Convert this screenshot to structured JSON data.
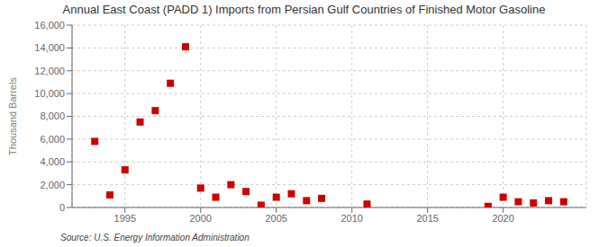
{
  "chart_data": {
    "type": "scatter",
    "title": "Annual East Coast (PADD 1) Imports from Persian Gulf Countries of Finished Motor Gasoline",
    "y_label": "Thousand Barrels",
    "annotations": [
      "Source: U.S. Energy Information Administration"
    ],
    "x": [
      1993,
      1994,
      1995,
      1996,
      1997,
      1998,
      1999,
      2000,
      2001,
      2002,
      2003,
      2004,
      2005,
      2006,
      2007,
      2008,
      2011,
      2019,
      2020,
      2021,
      2022,
      2023,
      2024
    ],
    "values": [
      5800,
      1100,
      3300,
      7500,
      8500,
      10900,
      14100,
      1700,
      900,
      2000,
      1400,
      200,
      900,
      1200,
      600,
      800,
      300,
      100,
      900,
      500,
      400,
      600,
      500
    ],
    "color": "#cc0000",
    "marker": "square",
    "xlim": [
      1991.5,
      2025.5
    ],
    "xticks": [
      1995,
      2000,
      2005,
      2010,
      2015,
      2020
    ],
    "ylim": [
      0,
      16000
    ],
    "yticks": [
      0,
      {
        "value": 2000,
        "label": "2,000"
      },
      {
        "value": 4000,
        "label": "4,000"
      },
      {
        "value": 6000,
        "label": "6,000"
      },
      {
        "value": 8000,
        "label": "8,000"
      },
      {
        "value": 10000,
        "label": "10,000"
      },
      {
        "value": 12000,
        "label": "12,000"
      },
      {
        "value": 14000,
        "label": "14,000"
      },
      {
        "value": 16000,
        "label": "16,000"
      }
    ],
    "grid": true
  }
}
